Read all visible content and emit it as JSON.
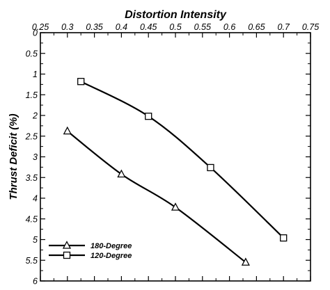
{
  "chart_data": {
    "type": "line",
    "title": "Distortion Intensity",
    "xlabel": "",
    "ylabel": "Thrust Deficit (%)",
    "x_axis_position": "top",
    "y_axis_inverted": true,
    "xlim": [
      0.25,
      0.75
    ],
    "ylim": [
      0,
      6
    ],
    "x_ticks": [
      "0.25",
      "0.3",
      "0.35",
      "0.4",
      "0.45",
      "0.5",
      "0.55",
      "0.6",
      "0.65",
      "0.7",
      "0.75"
    ],
    "y_ticks": [
      "0",
      "0.5",
      "1",
      "1.5",
      "2",
      "2.5",
      "3",
      "3.5",
      "4",
      "4.5",
      "5",
      "5.5",
      "6"
    ],
    "grid": false,
    "legend_position": "bottom-left",
    "series": [
      {
        "name": "180-Degree",
        "marker": "triangle",
        "color": "#000000",
        "x": [
          0.3,
          0.4,
          0.5,
          0.63
        ],
        "y": [
          2.38,
          3.42,
          4.22,
          5.55
        ]
      },
      {
        "name": "120-Degree",
        "marker": "square",
        "color": "#000000",
        "x": [
          0.325,
          0.45,
          0.565,
          0.7
        ],
        "y": [
          1.18,
          2.02,
          3.26,
          4.96
        ]
      }
    ]
  }
}
